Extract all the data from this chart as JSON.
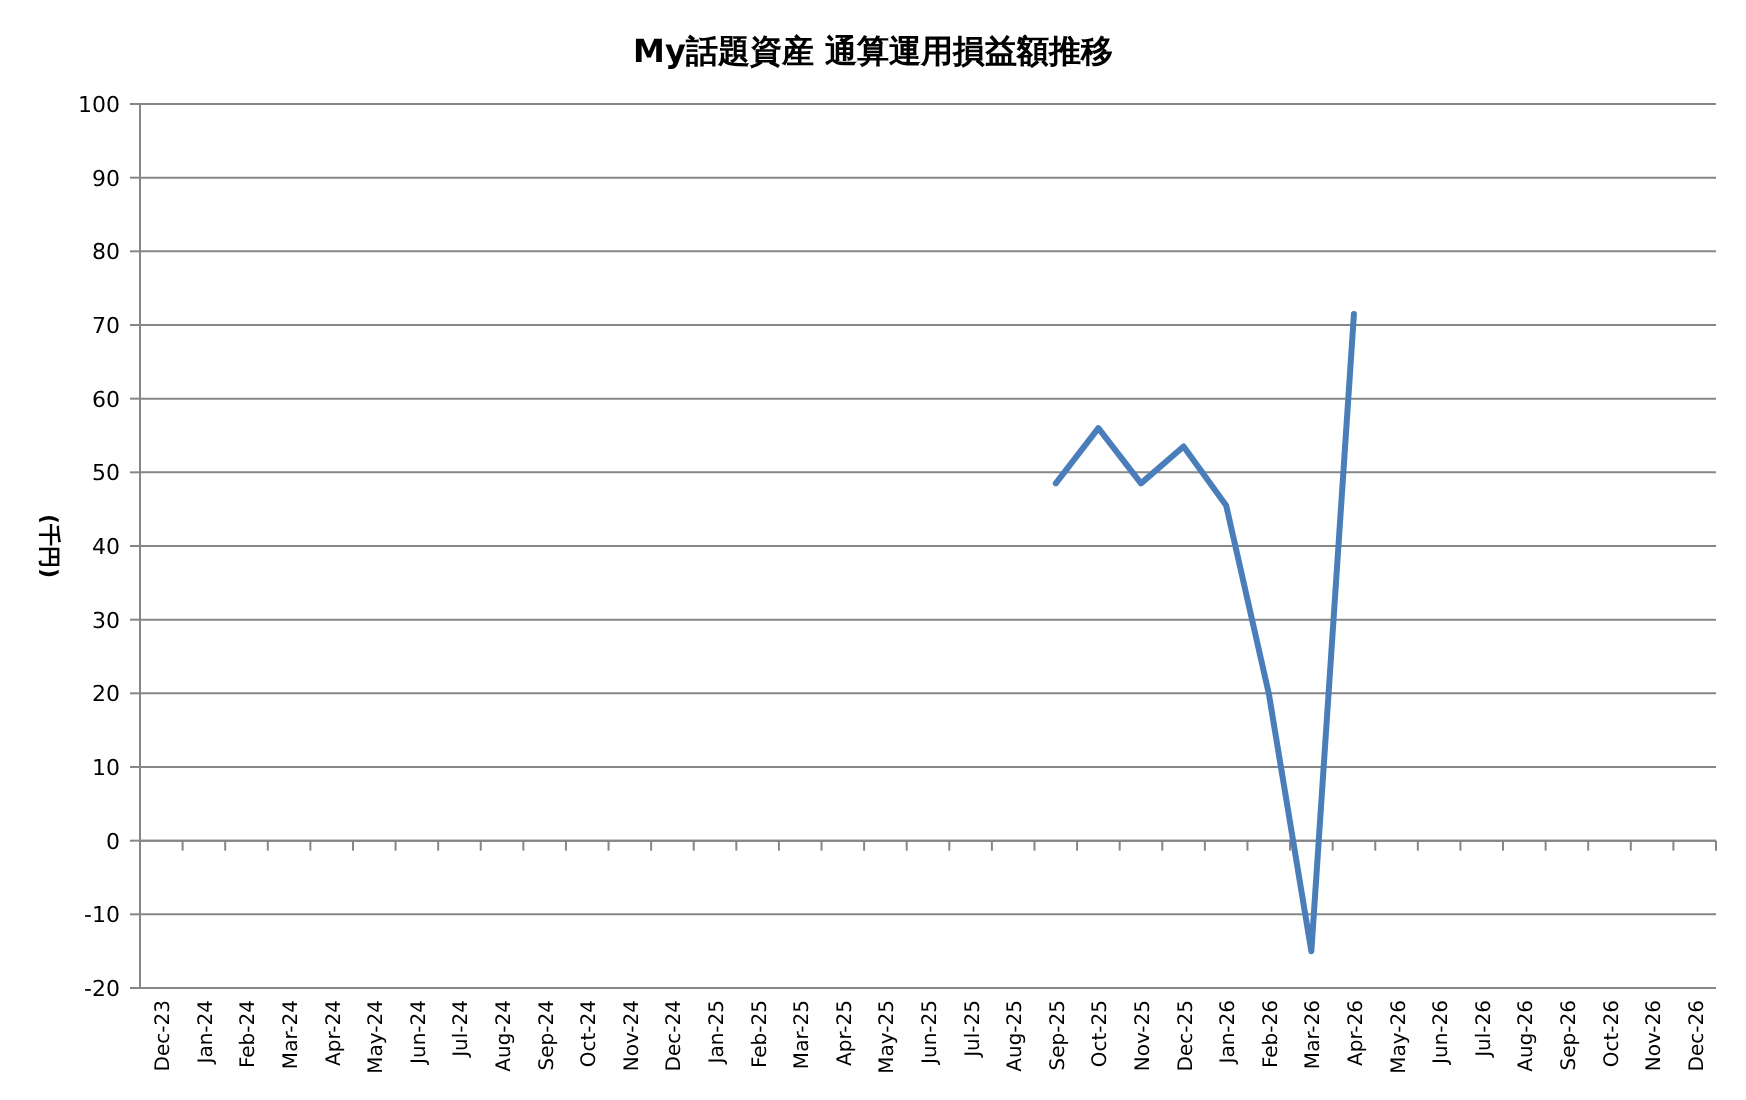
{
  "chart_data": {
    "type": "line",
    "title": "My話題資産 通算運用損益額推移",
    "ylabel": "(千円)",
    "categories": [
      "Dec-23",
      "Jan-24",
      "Feb-24",
      "Mar-24",
      "Apr-24",
      "May-24",
      "Jun-24",
      "Jul-24",
      "Aug-24",
      "Sep-24",
      "Oct-24",
      "Nov-24",
      "Dec-24",
      "Jan-25",
      "Feb-25",
      "Mar-25",
      "Apr-25",
      "May-25",
      "Jun-25",
      "Jul-25",
      "Aug-25",
      "Sep-25",
      "Oct-25",
      "Nov-25",
      "Dec-25",
      "Jan-26",
      "Feb-26",
      "Mar-26",
      "Apr-26",
      "May-26",
      "Jun-26",
      "Jul-26",
      "Aug-26",
      "Sep-26",
      "Oct-26",
      "Nov-26",
      "Dec-26"
    ],
    "series": [
      {
        "color": "#4a7ebb",
        "values": [
          null,
          null,
          null,
          null,
          null,
          null,
          null,
          null,
          null,
          null,
          null,
          null,
          null,
          null,
          null,
          null,
          null,
          null,
          null,
          null,
          null,
          48.5,
          56,
          48.5,
          53.5,
          45.5,
          20,
          -15,
          71.5,
          null,
          null,
          null,
          null,
          null,
          null,
          null,
          null
        ]
      }
    ],
    "ylim": [
      -20,
      100
    ],
    "yticks": [
      -20,
      -10,
      0,
      10,
      20,
      30,
      40,
      50,
      60,
      70,
      80,
      90,
      100
    ],
    "grid": "y",
    "marker": "none",
    "line_style": "solid"
  }
}
